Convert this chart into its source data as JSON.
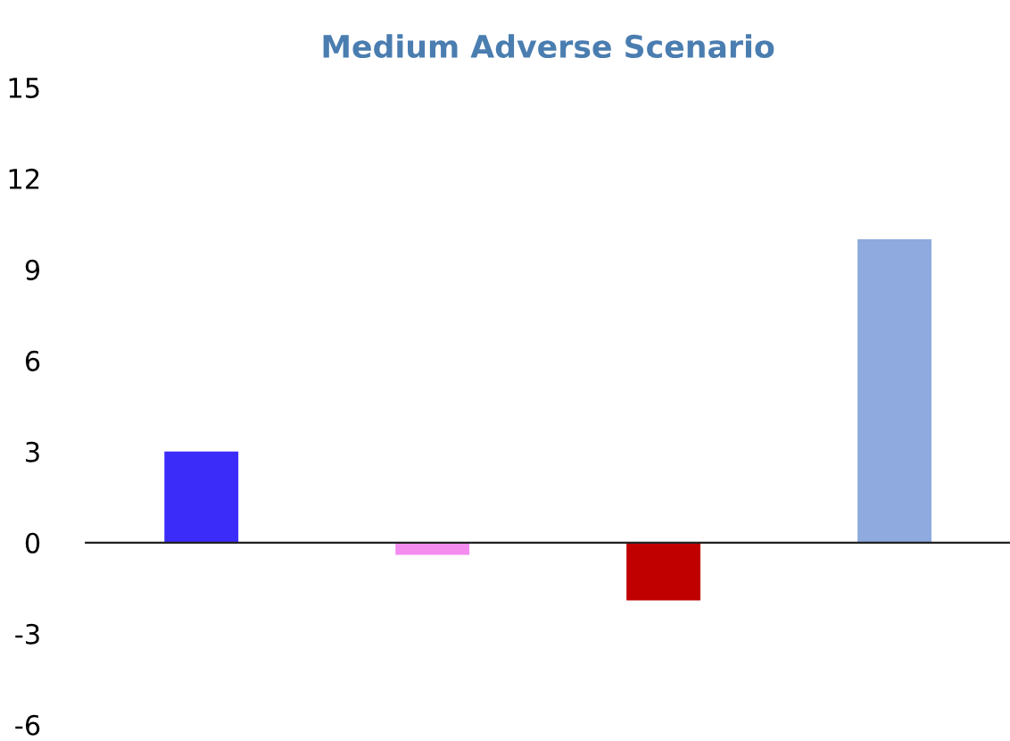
{
  "chart_data": {
    "type": "bar",
    "title": "Medium Adverse Scenario",
    "categories": [
      null,
      null,
      null,
      null
    ],
    "values": [
      3,
      -0.4,
      -1.9,
      10
    ],
    "colors": [
      "#3c2cfa",
      "#f48cf0",
      "#c00000",
      "#8eaade"
    ],
    "ylim": [
      -6,
      15
    ],
    "yticks": [
      -6,
      -3,
      0,
      3,
      6,
      9,
      12,
      15
    ],
    "legend": false
  }
}
